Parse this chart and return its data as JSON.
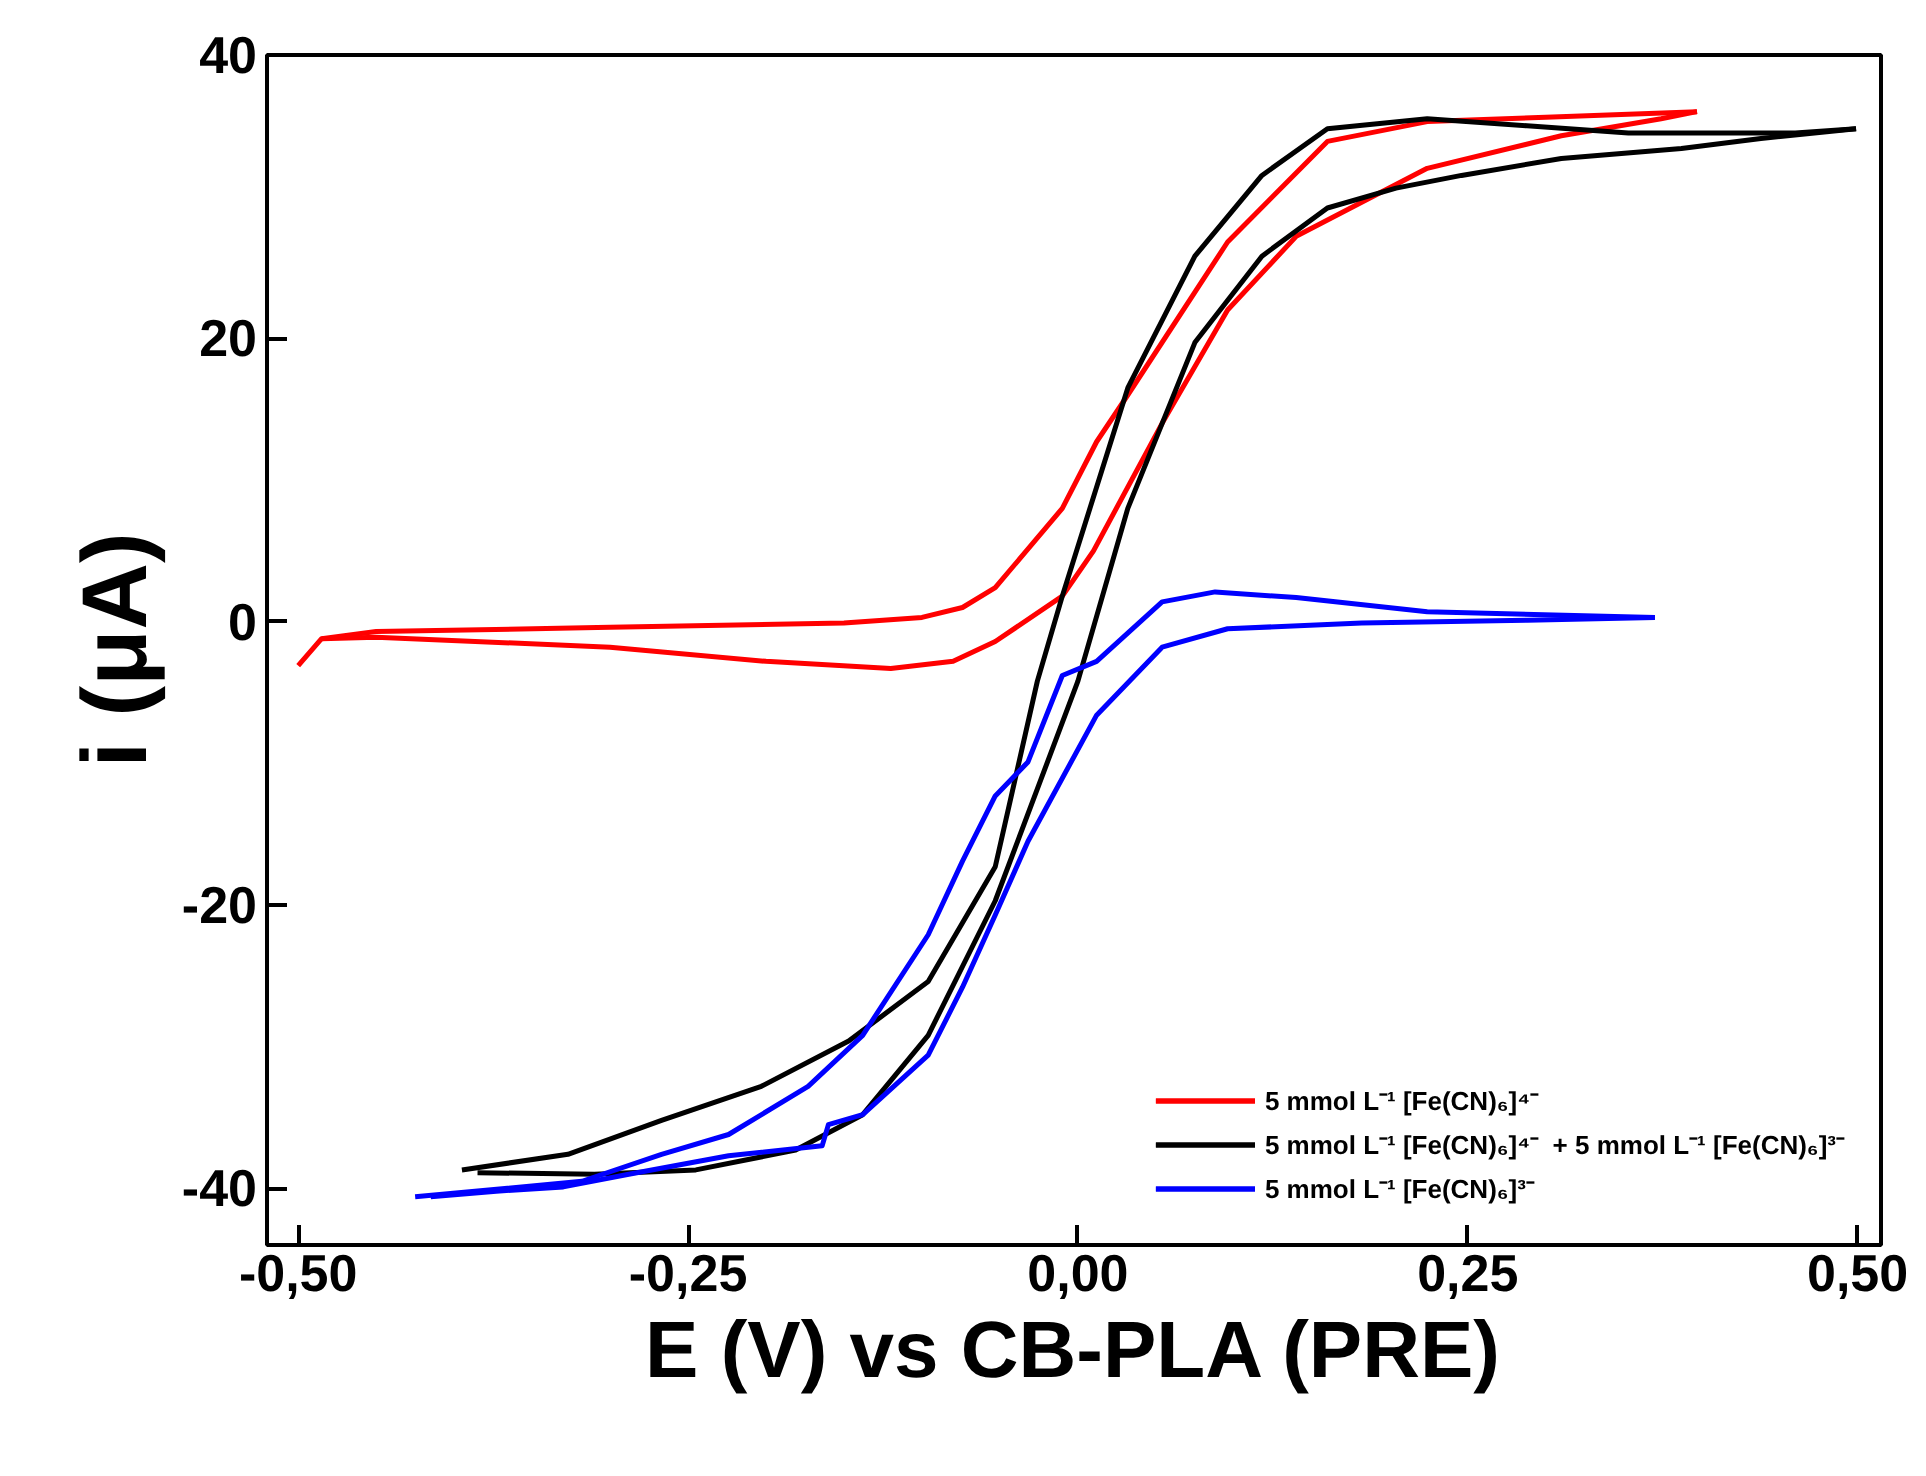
{
  "chart_data": {
    "type": "line",
    "xlabel": "E (V) vs CB-PLA (PRE)",
    "ylabel": "i (μA)",
    "xlim": [
      -0.52,
      0.515
    ],
    "ylim": [
      -44,
      40
    ],
    "xticks": [
      {
        "value": -0.5,
        "label": "-0,50"
      },
      {
        "value": -0.25,
        "label": "-0,25"
      },
      {
        "value": 0,
        "label": "0,00"
      },
      {
        "value": 0.25,
        "label": "0,25"
      },
      {
        "value": 0.5,
        "label": "0,50"
      }
    ],
    "yticks": [
      -40,
      -20,
      0,
      20,
      40
    ],
    "grid": false,
    "legend": "bottom right",
    "marker": "none",
    "line_style": "solid",
    "series": [
      {
        "name": "5 mmol L⁻¹ [Fe(CN)₆]⁴⁻",
        "color": "#ff0000",
        "x": [
          -0.5,
          -0.485,
          -0.45,
          -0.3,
          -0.15,
          -0.1,
          -0.074,
          -0.053,
          -0.01,
          0.012,
          0.032,
          0.096,
          0.16,
          0.224,
          0.3,
          0.397
        ],
        "values": [
          -3.1,
          -1.2,
          -0.7,
          -0.4,
          -0.1,
          0.3,
          1,
          2.4,
          8,
          12.7,
          16,
          26.8,
          33.9,
          35.3,
          35.6,
          36
        ]
      },
      {
        "color": "#ff0000",
        "x": [
          0.397,
          0.374,
          0.31,
          0.224,
          0.14,
          0.096,
          0.054,
          0.01,
          -0.01,
          -0.053,
          -0.08,
          -0.12,
          -0.2,
          -0.3,
          -0.45,
          -0.485
        ],
        "values": [
          36,
          35.5,
          34.3,
          32,
          27.2,
          22,
          14,
          5,
          1.8,
          -1.4,
          -2.8,
          -3.3,
          -2.8,
          -1.8,
          -1.1,
          -1.2
        ]
      },
      {
        "name": "5 mmol L⁻¹ [Fe(CN)₆]⁴⁻  + 5 mmol L⁻¹ [Fe(CN)₆]³⁻",
        "color": "#000000",
        "x": [
          -0.395,
          -0.327,
          -0.267,
          -0.203,
          -0.147,
          -0.096,
          -0.053,
          -0.026,
          -0.01,
          0.032,
          0.075,
          0.118,
          0.16,
          0.224,
          0.288,
          0.353,
          0.396,
          0.46,
          0.499
        ],
        "values": [
          -38.7,
          -37.6,
          -35.2,
          -32.8,
          -29.6,
          -25.4,
          -17.3,
          -4.2,
          1.8,
          16.5,
          25.8,
          31.5,
          34.8,
          35.5,
          35,
          34.5,
          34.5,
          34.5,
          34.8
        ]
      },
      {
        "color": "#000000",
        "x": [
          0.499,
          0.438,
          0.387,
          0.31,
          0.246,
          0.204,
          0.16,
          0.118,
          0.075,
          0.032,
          0.0,
          -0.053,
          -0.096,
          -0.138,
          -0.181,
          -0.245,
          -0.31,
          -0.385
        ],
        "values": [
          34.8,
          34.1,
          33.4,
          32.7,
          31.5,
          30.6,
          29.2,
          25.8,
          19.7,
          8,
          -4.2,
          -19.7,
          -29.2,
          -34.8,
          -37.3,
          -38.7,
          -39,
          -38.9
        ]
      },
      {
        "name": "5 mmol L⁻¹ [Fe(CN)₆]³⁻",
        "color": "#0000ff",
        "x": [
          -0.425,
          -0.318,
          -0.267,
          -0.224,
          -0.173,
          -0.138,
          -0.096,
          -0.074,
          -0.053,
          -0.032,
          -0.01,
          0.012,
          0.054,
          0.088,
          0.14,
          0.224,
          0.37
        ],
        "values": [
          -40.6,
          -39.5,
          -37.6,
          -36.2,
          -32.8,
          -29.2,
          -22.1,
          -16.9,
          -12.3,
          -9.9,
          -3.8,
          -2.8,
          1.4,
          2.1,
          1.7,
          0.7,
          0.3
        ]
      },
      {
        "color": "#0000ff",
        "x": [
          0.37,
          0.288,
          0.182,
          0.096,
          0.054,
          0.012,
          -0.032,
          -0.053,
          -0.074,
          -0.096,
          -0.138,
          -0.16,
          -0.164,
          -0.224,
          -0.288,
          -0.33,
          -0.373,
          -0.415
        ],
        "values": [
          0.3,
          0.1,
          -0.1,
          -0.5,
          -1.8,
          -6.6,
          -15.5,
          -20.7,
          -25.8,
          -30.6,
          -34.8,
          -35.5,
          -37,
          -37.7,
          -39,
          -39.9,
          -40.2,
          -40.6
        ]
      }
    ]
  }
}
